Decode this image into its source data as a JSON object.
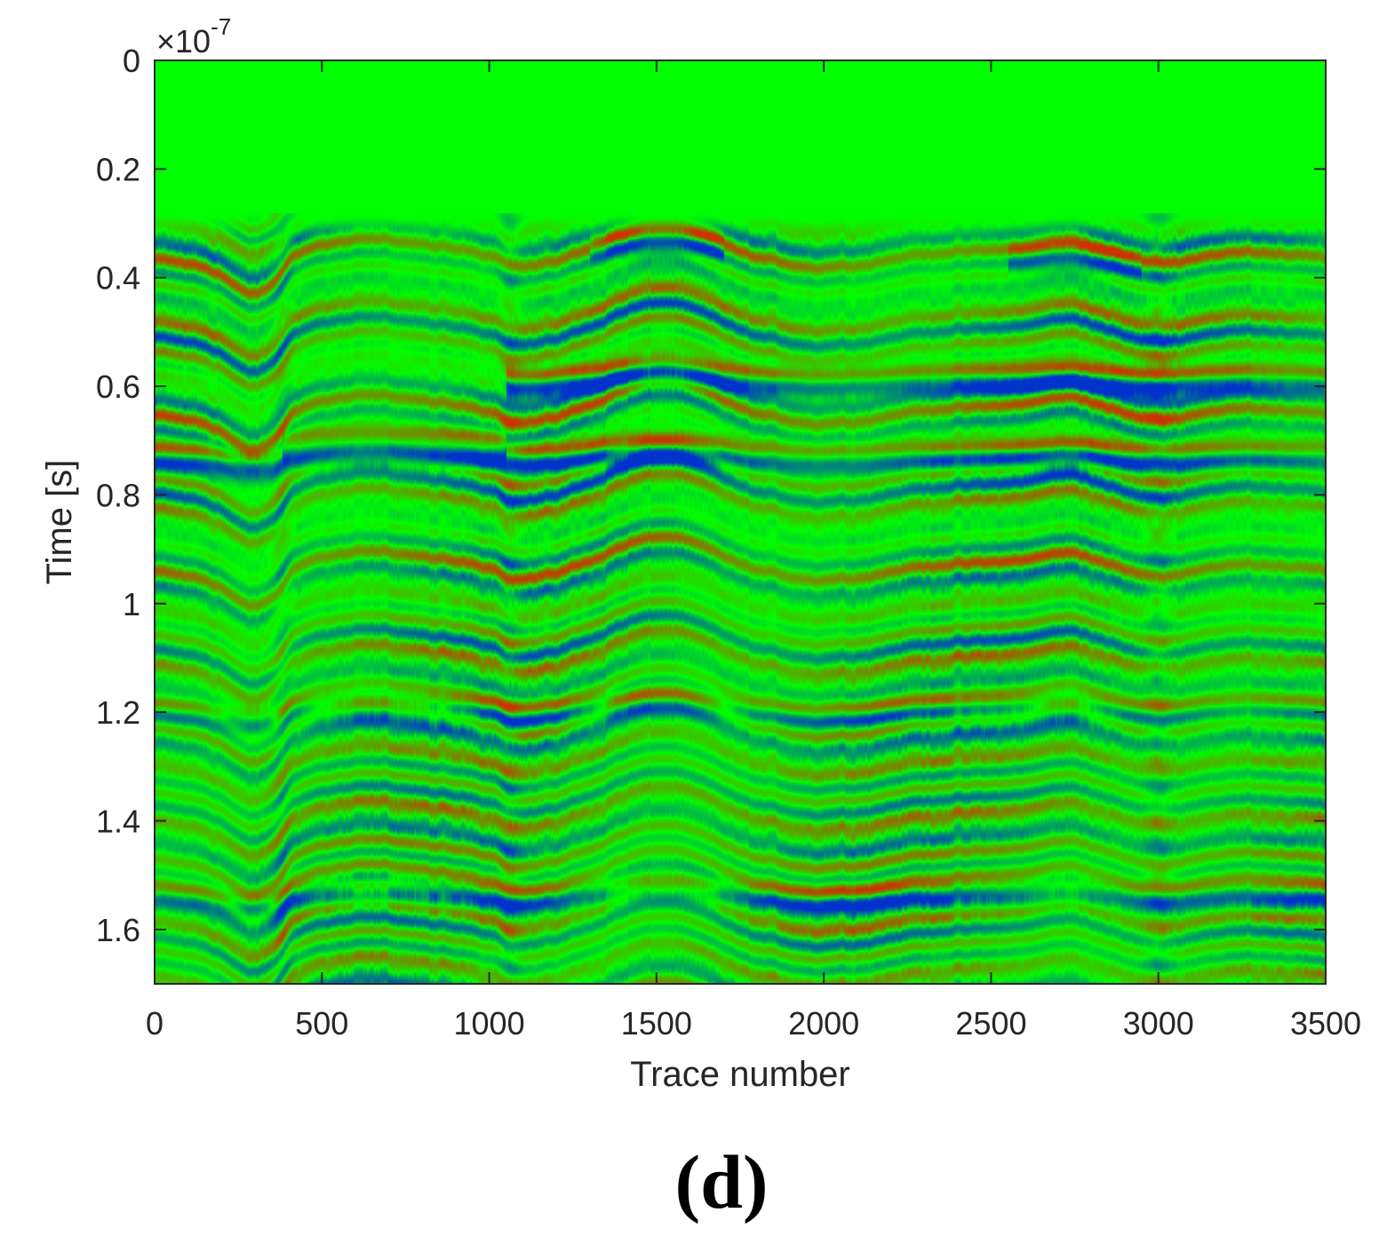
{
  "chart_data": {
    "type": "heatmap",
    "title": "",
    "xlabel": "Trace number",
    "ylabel": "Time [s]",
    "y_exponent": {
      "base": "10",
      "power": "-7",
      "multiplier": "×"
    },
    "xlim": [
      0,
      3500
    ],
    "ylim": [
      0,
      1.7
    ],
    "x_ticks": [
      "0",
      "500",
      "1000",
      "1500",
      "2000",
      "2500",
      "3000",
      "3500"
    ],
    "y_ticks": [
      "0",
      "0.2",
      "0.4",
      "0.6",
      "0.8",
      "1",
      "1.2",
      "1.4",
      "1.6"
    ],
    "y_reversed": true,
    "grid": false,
    "colormap": {
      "negative": "#0033cc",
      "zero": "#00ff00",
      "positive": "#cc3300"
    },
    "reflectors": [
      {
        "trace": [
          0,
          3500
        ],
        "time": 0.74,
        "strength": "strong"
      },
      {
        "trace": [
          1050,
          3500
        ],
        "time": 0.6,
        "strength": "strong"
      },
      {
        "trace": [
          380,
          1050
        ],
        "time": 0.72,
        "strength": "strong"
      },
      {
        "trace": [
          1300,
          1700
        ],
        "time": 0.36,
        "strength": "medium"
      },
      {
        "trace": [
          2550,
          2950
        ],
        "time": 0.38,
        "strength": "medium"
      },
      {
        "trace": [
          0,
          3500
        ],
        "time": 1.21,
        "strength": "medium"
      },
      {
        "trace": [
          0,
          3500
        ],
        "time": 1.55,
        "strength": "medium"
      }
    ]
  },
  "panel_label": "(d)"
}
